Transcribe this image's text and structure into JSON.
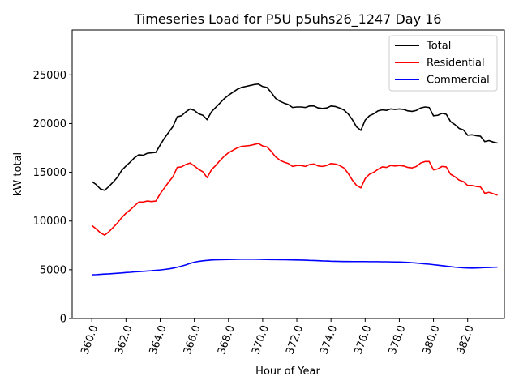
{
  "chart_data": {
    "type": "line",
    "title": "Timeseries Load for P5U p5uhs26_1247  Day 16",
    "xlabel": "Hour of Year",
    "ylabel": "kW total",
    "xlim": [
      358.85,
      384.15
    ],
    "ylim": [
      0,
      29600
    ],
    "xticks": [
      360,
      362,
      364,
      366,
      368,
      370,
      372,
      374,
      376,
      378,
      380,
      382
    ],
    "xtick_labels": [
      "360.0",
      "362.0",
      "364.0",
      "366.0",
      "368.0",
      "370.0",
      "372.0",
      "374.0",
      "376.0",
      "378.0",
      "380.0",
      "382.0"
    ],
    "yticks": [
      0,
      5000,
      10000,
      15000,
      20000,
      25000
    ],
    "ytick_labels": [
      "0",
      "5000",
      "10000",
      "15000",
      "20000",
      "25000"
    ],
    "legend_position": "upper right",
    "x": [
      360.0,
      360.25,
      360.5,
      360.75,
      361.0,
      361.25,
      361.5,
      361.75,
      362.0,
      362.25,
      362.5,
      362.75,
      363.0,
      363.25,
      363.5,
      363.75,
      364.0,
      364.25,
      364.5,
      364.75,
      365.0,
      365.25,
      365.5,
      365.75,
      366.0,
      366.25,
      366.5,
      366.75,
      367.0,
      367.25,
      367.5,
      367.75,
      368.0,
      368.25,
      368.5,
      368.75,
      369.0,
      369.25,
      369.5,
      369.75,
      370.0,
      370.25,
      370.5,
      370.75,
      371.0,
      371.25,
      371.5,
      371.75,
      372.0,
      372.25,
      372.5,
      372.75,
      373.0,
      373.25,
      373.5,
      373.75,
      374.0,
      374.25,
      374.5,
      374.75,
      375.0,
      375.25,
      375.5,
      375.75,
      376.0,
      376.25,
      376.5,
      376.75,
      377.0,
      377.25,
      377.5,
      377.75,
      378.0,
      378.25,
      378.5,
      378.75,
      379.0,
      379.25,
      379.5,
      379.75,
      380.0,
      380.25,
      380.5,
      380.75,
      381.0,
      381.25,
      381.5,
      381.75,
      382.0,
      382.25,
      382.5,
      382.75,
      383.0,
      383.25,
      383.5,
      383.75
    ],
    "series": [
      {
        "name": "Total",
        "color": "#000000",
        "values": [
          14050,
          13750,
          13300,
          13150,
          13550,
          14000,
          14500,
          15200,
          15650,
          16050,
          16500,
          16800,
          16750,
          16950,
          17000,
          17050,
          17800,
          18500,
          19100,
          19700,
          20700,
          20800,
          21200,
          21500,
          21350,
          21000,
          20850,
          20400,
          21200,
          21650,
          22100,
          22550,
          22900,
          23200,
          23500,
          23700,
          23800,
          23900,
          24000,
          24050,
          23800,
          23700,
          23200,
          22600,
          22300,
          22100,
          21950,
          21650,
          21700,
          21700,
          21650,
          21800,
          21800,
          21600,
          21550,
          21600,
          21800,
          21750,
          21600,
          21400,
          21000,
          20400,
          19650,
          19300,
          20350,
          20800,
          21000,
          21300,
          21400,
          21350,
          21500,
          21450,
          21500,
          21450,
          21300,
          21250,
          21350,
          21600,
          21700,
          21650,
          20800,
          20850,
          21050,
          20950,
          20200,
          19900,
          19500,
          19350,
          18800,
          18850,
          18750,
          18700,
          18150,
          18250,
          18100,
          18000
        ]
      },
      {
        "name": "Residential",
        "color": "#ff0000",
        "values": [
          9550,
          9200,
          8800,
          8550,
          8900,
          9350,
          9800,
          10350,
          10800,
          11150,
          11550,
          11950,
          11950,
          12050,
          12000,
          12050,
          12800,
          13400,
          14000,
          14550,
          15500,
          15550,
          15800,
          15950,
          15650,
          15300,
          15050,
          14450,
          15250,
          15700,
          16200,
          16650,
          17000,
          17250,
          17500,
          17650,
          17700,
          17750,
          17850,
          17950,
          17700,
          17600,
          17150,
          16600,
          16250,
          16050,
          15900,
          15600,
          15700,
          15700,
          15600,
          15800,
          15850,
          15650,
          15600,
          15700,
          15900,
          15850,
          15700,
          15450,
          14900,
          14200,
          13650,
          13400,
          14350,
          14800,
          15000,
          15300,
          15550,
          15500,
          15700,
          15650,
          15700,
          15650,
          15500,
          15450,
          15600,
          15950,
          16100,
          16100,
          15250,
          15350,
          15600,
          15550,
          14800,
          14550,
          14200,
          14050,
          13650,
          13650,
          13550,
          13500,
          12850,
          12950,
          12800,
          12650
        ]
      },
      {
        "name": "Commercial",
        "color": "#0000ff",
        "values": [
          4480,
          4500,
          4530,
          4560,
          4580,
          4610,
          4640,
          4670,
          4710,
          4740,
          4780,
          4810,
          4840,
          4870,
          4900,
          4940,
          4980,
          5030,
          5090,
          5160,
          5260,
          5370,
          5500,
          5650,
          5780,
          5860,
          5920,
          5960,
          6000,
          6020,
          6030,
          6040,
          6050,
          6060,
          6070,
          6080,
          6080,
          6080,
          6080,
          6070,
          6060,
          6050,
          6040,
          6040,
          6030,
          6030,
          6020,
          6010,
          6000,
          5990,
          5980,
          5960,
          5950,
          5930,
          5910,
          5900,
          5880,
          5870,
          5860,
          5850,
          5850,
          5840,
          5840,
          5840,
          5840,
          5830,
          5830,
          5830,
          5820,
          5820,
          5810,
          5800,
          5790,
          5770,
          5750,
          5720,
          5690,
          5650,
          5610,
          5570,
          5520,
          5470,
          5420,
          5370,
          5320,
          5270,
          5230,
          5200,
          5180,
          5170,
          5180,
          5200,
          5220,
          5230,
          5250,
          5270
        ]
      }
    ]
  }
}
